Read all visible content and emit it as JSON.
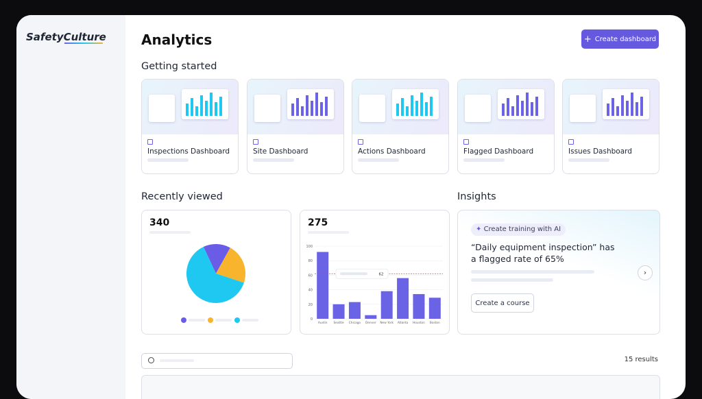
{
  "sidebar": {
    "logo": "SafetyCulture"
  },
  "header": {
    "title": "Analytics",
    "button": "Create dashboard"
  },
  "getting_started": {
    "title": "Getting started",
    "cards": [
      "Inspections Dashboard",
      "Site Dashboard",
      "Actions Dashboard",
      "Flagged Dashboard",
      "Issues Dashboard"
    ]
  },
  "recently_viewed": {
    "title": "Recently viewed"
  },
  "chart_data": [
    {
      "type": "pie",
      "total": 340,
      "values": [
        15,
        22,
        63
      ],
      "colors": [
        "#6b5ce7",
        "#f8b42c",
        "#1ec8f0"
      ]
    },
    {
      "type": "bar",
      "total": 275,
      "categories": [
        "Austin",
        "Seattle",
        "Chicago",
        "Denver",
        "New York",
        "Atlanta",
        "Houston",
        "Boston"
      ],
      "values": [
        92,
        20,
        23,
        5,
        38,
        56,
        34,
        29
      ],
      "color": "#6b63e6",
      "ylim": [
        0,
        100
      ],
      "yticks": [
        0,
        20,
        40,
        60,
        80,
        100
      ],
      "reference_line": 62
    }
  ],
  "insights": {
    "title": "Insights",
    "chip": "Create training with AI",
    "quote": "“Daily equipment inspection” has a flagged rate of 65%",
    "button": "Create a course"
  },
  "search": {
    "results": "15 results"
  }
}
